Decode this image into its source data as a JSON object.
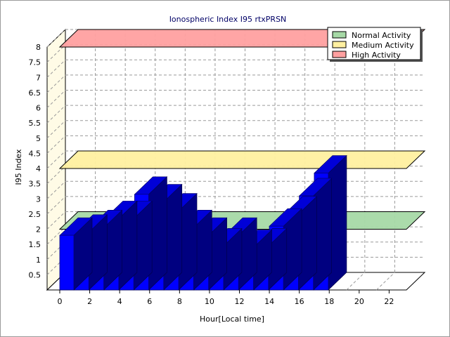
{
  "chart_data": {
    "type": "bar",
    "title": "Ionospheric Index I95 rtxPRSN",
    "xlabel": "Hour[Local time]",
    "ylabel": "I95 Index",
    "x_tick_labels": [
      "0",
      "2",
      "4",
      "6",
      "8",
      "10",
      "12",
      "14",
      "16",
      "18",
      "20",
      "22"
    ],
    "y_tick_labels": [
      "0.5",
      "1",
      "1.5",
      "2",
      "2.5",
      "3",
      "3.5",
      "4",
      "4.5",
      "5",
      "5.5",
      "6",
      "6.5",
      "7",
      "7.5",
      "8"
    ],
    "ylim": [
      0,
      8
    ],
    "xlim": [
      0,
      24
    ],
    "grid": true,
    "legend_position": "top-right",
    "hours": [
      0,
      1,
      2,
      3,
      4,
      5,
      6,
      7,
      8,
      9,
      10,
      11,
      12,
      13,
      14,
      15,
      16,
      17
    ],
    "values": [
      1.8,
      1.9,
      2.05,
      2.35,
      2.35,
      3.15,
      2.9,
      2.6,
      2.05,
      1.8,
      1.45,
      1.8,
      1.4,
      1.45,
      2.1,
      2.5,
      3.1,
      3.85
    ],
    "bar_color": "#0000ff",
    "bands": [
      {
        "name": "Normal Activity",
        "value": 2.0,
        "color": "#a6d9a6"
      },
      {
        "name": "Medium Activity",
        "value": 4.0,
        "color": "#fff0a0"
      },
      {
        "name": "High Activity",
        "value": 8.0,
        "color": "#ffa0a0"
      }
    ]
  }
}
